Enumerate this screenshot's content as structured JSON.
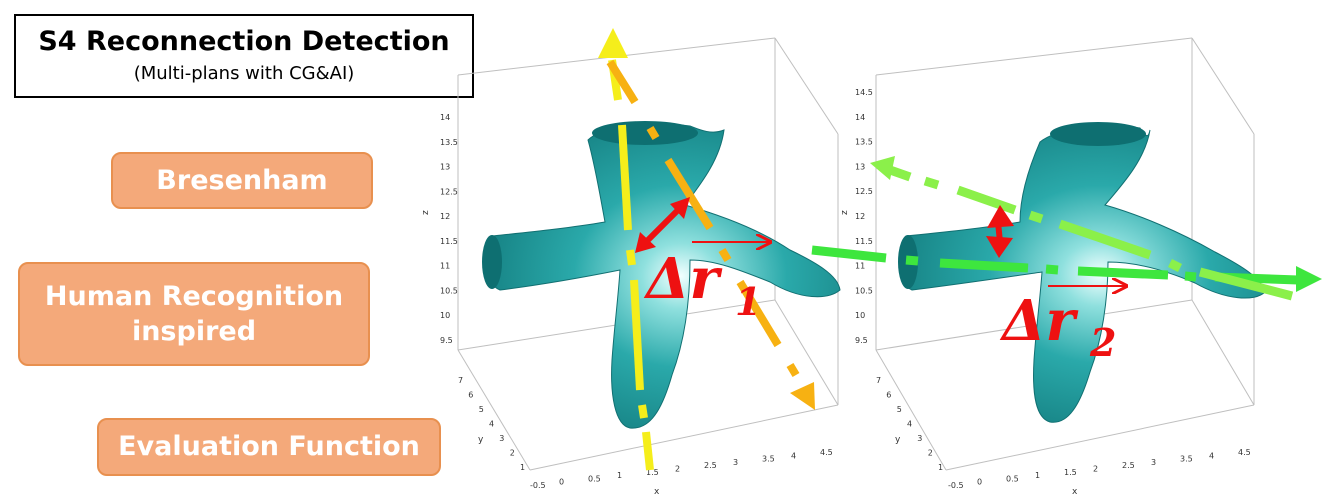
{
  "title": {
    "main": "S4 Reconnection Detection",
    "subtitle": "(Multi-plans with CG&AI)"
  },
  "methods": {
    "bresenham": "Bresenham",
    "human_line1": "Human Recognition",
    "human_line2": "inspired",
    "evaluation": "Evaluation Function"
  },
  "plot_left": {
    "z_ticks": [
      "14",
      "13.5",
      "13",
      "12.5",
      "12",
      "11.5",
      "11",
      "10.5",
      "10",
      "9.5"
    ],
    "y_ticks": [
      "7",
      "6",
      "5",
      "4",
      "3",
      "2",
      "1"
    ],
    "x_ticks": [
      "-0.5",
      "0",
      "0.5",
      "1",
      "1.5",
      "2",
      "2.5",
      "3",
      "3.5",
      "4",
      "4.5"
    ],
    "z_label": "z",
    "y_label": "y",
    "x_label": "x",
    "delta_base": "Δr",
    "delta_sub": "1"
  },
  "plot_right": {
    "z_ticks": [
      "14.5",
      "14",
      "13.5",
      "13",
      "12.5",
      "12",
      "11.5",
      "11",
      "10.5",
      "10",
      "9.5"
    ],
    "y_ticks": [
      "7",
      "6",
      "5",
      "4",
      "3",
      "2",
      "1"
    ],
    "x_ticks": [
      "-0.5",
      "0",
      "0.5",
      "1",
      "1.5",
      "2",
      "2.5",
      "3",
      "3.5",
      "4",
      "4.5"
    ],
    "z_label": "z",
    "y_label": "y",
    "x_label": "x",
    "delta_base": "Δr",
    "delta_sub": "2"
  },
  "colors": {
    "surface": "#1F9A9C",
    "pill_fill": "#F4A97A",
    "yellow": "#F5EE1B",
    "orange": "#F7B112",
    "green": "#3EE63E",
    "light_green": "#8BF04A",
    "red": "#EE1111"
  }
}
